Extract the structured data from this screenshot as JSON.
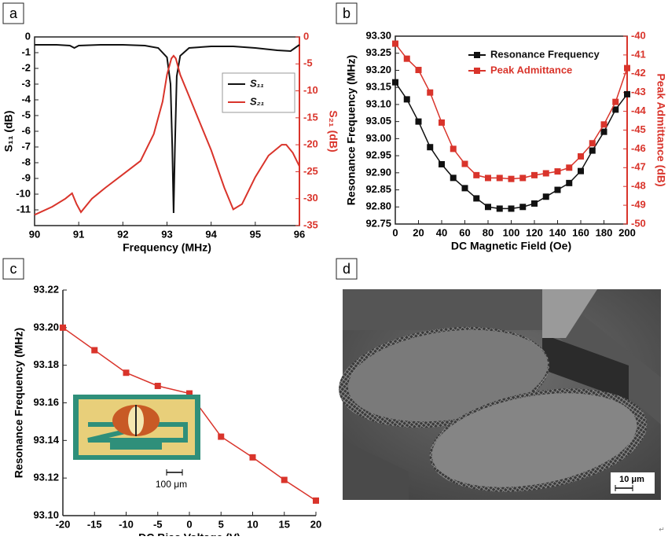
{
  "panel_labels": [
    "a",
    "b",
    "c",
    "d"
  ],
  "chart_data": [
    {
      "type": "line",
      "frame": "box",
      "x_label": "Frequency (MHz)",
      "y_label": "S₁₁ (dB)",
      "y2_label": "S₂₁ (dB)",
      "xlim": [
        90,
        96
      ],
      "xticks": [
        90,
        91,
        92,
        93,
        94,
        95,
        96
      ],
      "ylim": [
        -12,
        0
      ],
      "yticks": [
        0,
        -1,
        -2,
        -3,
        -4,
        -5,
        -6,
        -7,
        -8,
        -9,
        -10,
        -11
      ],
      "y2lim": [
        -35,
        0
      ],
      "y2ticks": [
        0,
        -5,
        -10,
        -15,
        -20,
        -25,
        -30,
        -35
      ],
      "y2_color": "#d9342b",
      "series": [
        {
          "name": "S₁₁",
          "color": "#111111",
          "x": [
            90,
            90.5,
            90.8,
            90.9,
            91,
            91.5,
            92,
            92.5,
            92.8,
            93.0,
            93.08,
            93.12,
            93.15,
            93.18,
            93.22,
            93.3,
            93.5,
            94,
            94.5,
            95,
            95.5,
            95.8,
            96
          ],
          "values": [
            -0.5,
            -0.5,
            -0.55,
            -0.7,
            -0.55,
            -0.5,
            -0.5,
            -0.55,
            -0.7,
            -1.3,
            -3,
            -7,
            -11.2,
            -7,
            -2.5,
            -1.2,
            -0.7,
            -0.6,
            -0.6,
            -0.7,
            -0.85,
            -0.9,
            -0.5
          ]
        },
        {
          "name": "S₂₁",
          "color": "#d9342b",
          "axis": "y2",
          "x": [
            90,
            90.4,
            90.7,
            90.85,
            90.95,
            91.05,
            91.3,
            91.6,
            92,
            92.4,
            92.7,
            92.9,
            93.0,
            93.1,
            93.15,
            93.2,
            93.3,
            93.5,
            93.7,
            94,
            94.3,
            94.5,
            94.7,
            95,
            95.3,
            95.6,
            95.7,
            95.85,
            96
          ],
          "values": [
            -33,
            -31.5,
            -30,
            -29,
            -31,
            -32.5,
            -30,
            -28,
            -25.5,
            -23,
            -18,
            -12,
            -7,
            -4,
            -3.5,
            -4,
            -7,
            -11,
            -15,
            -21,
            -28,
            -32,
            -31,
            -26,
            -22,
            -20,
            -20,
            -21.5,
            -24
          ]
        }
      ]
    },
    {
      "type": "line",
      "markers": true,
      "frame": "box",
      "x_label": "DC Magnetic Field (Oe)",
      "y_label": "Resonance Frequency (MHz)",
      "y2_label": "Peak Admittance (dB)",
      "x": [
        0,
        10,
        20,
        30,
        40,
        50,
        60,
        70,
        80,
        90,
        100,
        110,
        120,
        130,
        140,
        150,
        160,
        170,
        180,
        190,
        200
      ],
      "xlim": [
        0,
        200
      ],
      "xticks": [
        0,
        20,
        40,
        60,
        80,
        100,
        120,
        140,
        160,
        180,
        200
      ],
      "ylim": [
        92.75,
        93.3
      ],
      "yticks": [
        92.75,
        {
          "value": 92.8,
          "label": "92.80"
        },
        92.85,
        {
          "value": 92.9,
          "label": "92.90"
        },
        92.95,
        {
          "value": 93.0,
          "label": "93.00"
        },
        93.05,
        {
          "value": 93.1,
          "label": "93.10"
        },
        93.15,
        {
          "value": 93.2,
          "label": "93.20"
        },
        93.25,
        {
          "value": 93.3,
          "label": "93.30"
        }
      ],
      "y2lim": [
        -50,
        -40
      ],
      "y2ticks": [
        -40,
        -41,
        -42,
        -43,
        -44,
        -45,
        -46,
        -47,
        -48,
        -49,
        -50
      ],
      "y2_color": "#d9342b",
      "series": [
        {
          "name": "Resonance Frequency",
          "color": "#111111",
          "values": [
            93.165,
            93.115,
            93.05,
            92.975,
            92.925,
            92.885,
            92.855,
            92.825,
            92.8,
            92.795,
            92.795,
            92.8,
            92.81,
            92.83,
            92.85,
            92.87,
            92.905,
            92.965,
            93.02,
            93.085,
            93.13
          ]
        },
        {
          "name": "Peak Admittance",
          "color": "#d9342b",
          "axis": "y2",
          "values": [
            -40.4,
            -41.2,
            -41.8,
            -43.0,
            -44.6,
            -46.0,
            -46.8,
            -47.4,
            -47.55,
            -47.55,
            -47.6,
            -47.55,
            -47.4,
            -47.3,
            -47.2,
            -47.0,
            -46.4,
            -45.7,
            -44.7,
            -43.5,
            -41.7
          ]
        }
      ]
    },
    {
      "type": "line",
      "markers": true,
      "frame": "axes",
      "x_label": "DC Bias Voltage (V)",
      "y_label": "Resonance Frequency (MHz)",
      "x": [
        -20,
        -15,
        -10,
        -5,
        0,
        5,
        10,
        15,
        20
      ],
      "xlim": [
        -20,
        20
      ],
      "xticks": [
        -20,
        -15,
        -10,
        -5,
        0,
        5,
        10,
        15,
        20
      ],
      "ylim": [
        93.1,
        93.22
      ],
      "yticks": [
        {
          "value": 93.1,
          "label": "93.10"
        },
        93.12,
        93.14,
        93.16,
        93.18,
        {
          "value": 93.2,
          "label": "93.20"
        },
        93.22
      ],
      "inset_scale_bar": "100 μm",
      "series": [
        {
          "color": "#d9342b",
          "values": [
            93.2,
            93.188,
            93.176,
            93.169,
            93.165,
            93.142,
            93.131,
            93.119,
            93.108
          ]
        }
      ]
    }
  ],
  "image_d": {
    "scale_bar": "10 μm"
  },
  "corner_mark": "↵"
}
